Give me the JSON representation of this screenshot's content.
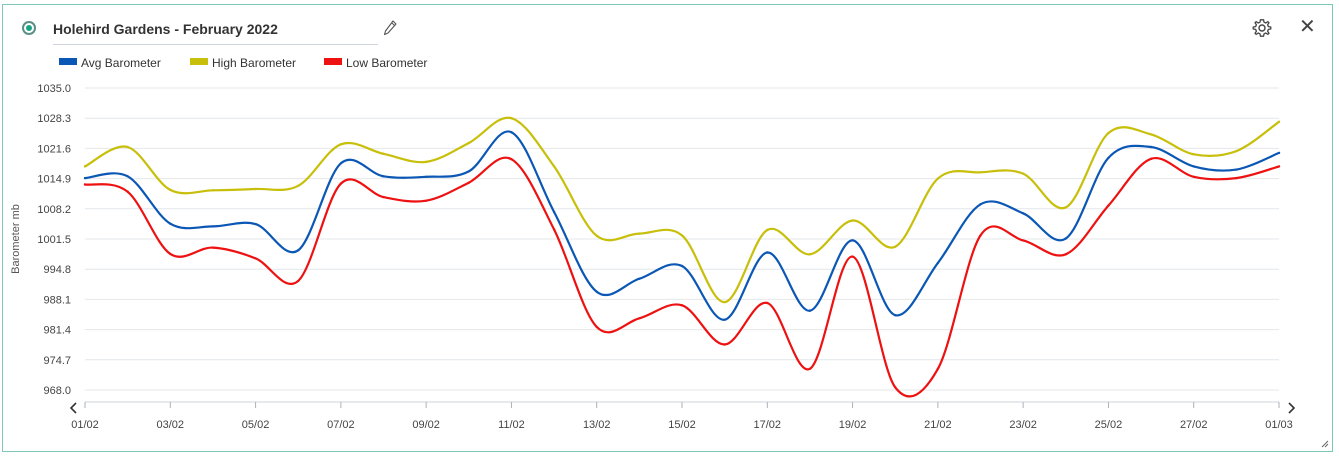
{
  "header": {
    "title": "Holehird Gardens - February 2022",
    "icons": [
      "radio-selected-icon",
      "pencil-icon",
      "gear-icon",
      "close-icon"
    ],
    "close_glyph": "✕"
  },
  "colors": {
    "avg": "#0b57b5",
    "high": "#c8bf0a",
    "low": "#ee1111",
    "grid": "#e4e7ea",
    "frame": "#7cc7b8"
  },
  "chart_data": {
    "type": "line",
    "ylabel": "Barometer mb",
    "xlabel": "",
    "ylim": [
      968.0,
      1035.0
    ],
    "yticks": [
      "1035.0",
      "1028.3",
      "1021.6",
      "1014.9",
      "1008.2",
      "1001.5",
      "994.8",
      "988.1",
      "981.4",
      "974.7",
      "968.0"
    ],
    "xticks": [
      "01/02",
      "03/02",
      "05/02",
      "07/02",
      "09/02",
      "11/02",
      "13/02",
      "15/02",
      "17/02",
      "19/02",
      "21/02",
      "23/02",
      "25/02",
      "27/02",
      "01/03"
    ],
    "x": [
      "01/02",
      "02/02",
      "03/02",
      "04/02",
      "05/02",
      "06/02",
      "07/02",
      "08/02",
      "09/02",
      "10/02",
      "11/02",
      "12/02",
      "13/02",
      "14/02",
      "15/02",
      "16/02",
      "17/02",
      "18/02",
      "19/02",
      "20/02",
      "21/02",
      "22/02",
      "23/02",
      "24/02",
      "25/02",
      "26/02",
      "27/02",
      "28/02",
      "01/03"
    ],
    "series": [
      {
        "name": "Avg Barometer",
        "color": "#0b57b5",
        "values": [
          1015.0,
          1015.4,
          1004.9,
          1004.3,
          1004.8,
          999.0,
          1018.3,
          1015.4,
          1015.3,
          1016.5,
          1025.2,
          1007.5,
          989.8,
          992.7,
          995.5,
          983.6,
          998.5,
          985.6,
          1001.2,
          984.6,
          996.2,
          1009.2,
          1007.2,
          1001.6,
          1019.5,
          1021.9,
          1017.6,
          1016.9,
          1020.6
        ]
      },
      {
        "name": "High Barometer",
        "color": "#c8bf0a",
        "values": [
          1017.6,
          1021.9,
          1012.4,
          1012.3,
          1012.6,
          1013.3,
          1022.5,
          1020.4,
          1018.6,
          1022.8,
          1028.3,
          1017.6,
          1002.2,
          1002.7,
          1002.3,
          987.5,
          1003.5,
          998.1,
          1005.6,
          999.8,
          1014.9,
          1016.3,
          1016.0,
          1008.5,
          1025.0,
          1024.7,
          1020.3,
          1021.0,
          1027.5
        ]
      },
      {
        "name": "Low Barometer",
        "color": "#ee1111",
        "values": [
          1013.6,
          1012.0,
          998.2,
          999.6,
          997.2,
          992.2,
          1013.8,
          1010.8,
          1010.0,
          1014.0,
          1019.2,
          1003.6,
          982.0,
          983.9,
          986.8,
          978.1,
          987.3,
          972.7,
          997.6,
          968.6,
          972.7,
          1002.3,
          1001.2,
          998.1,
          1008.9,
          1019.3,
          1015.3,
          1015.0,
          1017.6
        ]
      }
    ]
  }
}
